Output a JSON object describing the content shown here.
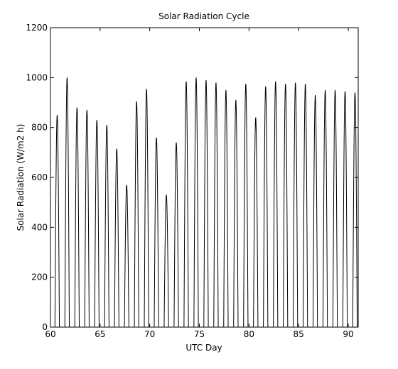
{
  "chart_data": {
    "type": "line",
    "title": "Solar Radiation Cycle",
    "xlabel": "UTC Day",
    "ylabel": "Solar Radiation (W/m2 h)",
    "xlim": [
      60,
      91
    ],
    "ylim": [
      0,
      1200
    ],
    "xticks": [
      60,
      65,
      70,
      75,
      80,
      85,
      90
    ],
    "yticks": [
      0,
      200,
      400,
      600,
      800,
      1000,
      1200
    ],
    "grid": false,
    "line_color": "#000000",
    "daily_peaks": [
      {
        "day": 60,
        "peak": 850
      },
      {
        "day": 61,
        "peak": 1000
      },
      {
        "day": 62,
        "peak": 880
      },
      {
        "day": 63,
        "peak": 870
      },
      {
        "day": 64,
        "peak": 830
      },
      {
        "day": 65,
        "peak": 810
      },
      {
        "day": 66,
        "peak": 715
      },
      {
        "day": 67,
        "peak": 570
      },
      {
        "day": 68,
        "peak": 905
      },
      {
        "day": 69,
        "peak": 955
      },
      {
        "day": 70,
        "peak": 760
      },
      {
        "day": 71,
        "peak": 530
      },
      {
        "day": 72,
        "peak": 740
      },
      {
        "day": 73,
        "peak": 985
      },
      {
        "day": 74,
        "peak": 1000
      },
      {
        "day": 75,
        "peak": 990
      },
      {
        "day": 76,
        "peak": 980
      },
      {
        "day": 77,
        "peak": 950
      },
      {
        "day": 78,
        "peak": 910
      },
      {
        "day": 79,
        "peak": 975
      },
      {
        "day": 80,
        "peak": 840
      },
      {
        "day": 81,
        "peak": 965
      },
      {
        "day": 82,
        "peak": 985
      },
      {
        "day": 83,
        "peak": 975
      },
      {
        "day": 84,
        "peak": 980
      },
      {
        "day": 85,
        "peak": 975
      },
      {
        "day": 86,
        "peak": 930
      },
      {
        "day": 87,
        "peak": 950
      },
      {
        "day": 88,
        "peak": 950
      },
      {
        "day": 89,
        "peak": 945
      },
      {
        "day": 90,
        "peak": 940
      }
    ],
    "daylight_start_fraction": 0.45,
    "daylight_end_fraction": 0.9
  }
}
